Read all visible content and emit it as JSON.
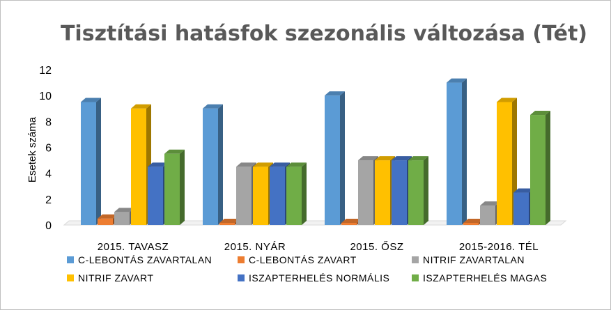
{
  "chart_data": {
    "type": "bar",
    "title": "Tisztítási hatásfok szezonális változása (Tét)",
    "xlabel": "",
    "ylabel": "Esetek száma",
    "ylim": [
      0,
      12
    ],
    "yticks": [
      0,
      2,
      4,
      6,
      8,
      10,
      12
    ],
    "grid": false,
    "legend_position": "bottom",
    "categories": [
      "2015. TAVASZ",
      "2015. NYÁR",
      "2015. ŐSZ",
      "2015-2016. TÉL"
    ],
    "series": [
      {
        "name": "C-LEBONTÁS ZAVARTALAN",
        "color": "#5B9BD5",
        "values": [
          9.5,
          9,
          10,
          11
        ]
      },
      {
        "name": "C-LEBONTÁS ZAVART",
        "color": "#ED7D31",
        "values": [
          0.5,
          0,
          0,
          0
        ]
      },
      {
        "name": "NITRIF ZAVARTALAN",
        "color": "#A5A5A5",
        "values": [
          1,
          4.5,
          5,
          1.5
        ]
      },
      {
        "name": "NITRIF ZAVART",
        "color": "#FFC000",
        "values": [
          9,
          4.5,
          5,
          9.5
        ]
      },
      {
        "name": "ISZAPTERHELÉS NORMÁLIS",
        "color": "#4472C4",
        "values": [
          4.5,
          4.5,
          5,
          2.5
        ]
      },
      {
        "name": "ISZAPTERHELÉS MAGAS",
        "color": "#70AD47",
        "values": [
          5.5,
          4.5,
          5,
          8.5
        ]
      }
    ]
  }
}
